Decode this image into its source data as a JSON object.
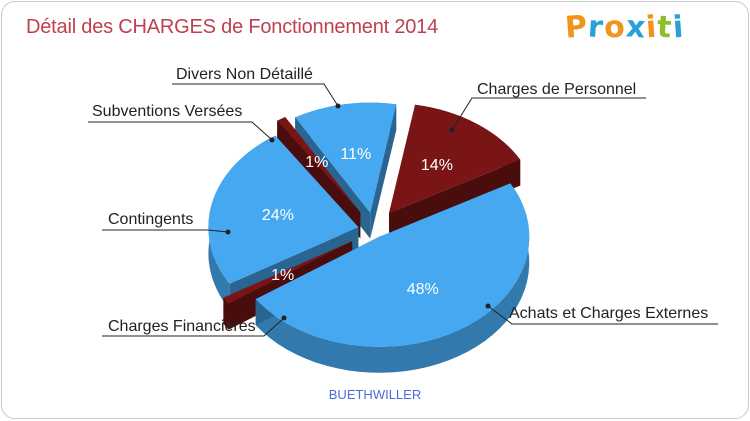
{
  "title": "Détail des CHARGES de Fonctionnement 2014",
  "logo": {
    "text": "Proxiti",
    "letters": [
      "P",
      "r",
      "o",
      "x",
      "i",
      "t",
      "i"
    ],
    "colors": [
      "#f0941c",
      "#2aa0d8",
      "#f0941c",
      "#2aa0d8",
      "#f0941c",
      "#8cbf2a",
      "#2aa0d8"
    ]
  },
  "subtitle": "BUETHWILLER",
  "colors": {
    "blue": "#45a8f0",
    "blue_dark": "#2b86cf",
    "red": "#7a1515",
    "red_dark": "#5a0e0e"
  },
  "chart_data": {
    "type": "pie",
    "title": "Détail des CHARGES de Fonctionnement 2014",
    "series": [
      {
        "name": "Charges de Personnel",
        "value": 14,
        "label": "14%",
        "color": "#7a1515"
      },
      {
        "name": "Achats et Charges Externes",
        "value": 48,
        "label": "48%",
        "color": "#45a8f0"
      },
      {
        "name": "Charges Financières",
        "value": 1,
        "label": "1%",
        "color": "#7a1515"
      },
      {
        "name": "Contingents",
        "value": 24,
        "label": "24%",
        "color": "#45a8f0"
      },
      {
        "name": "Subventions Versées",
        "value": 1,
        "label": "1%",
        "color": "#7a1515"
      },
      {
        "name": "Divers Non Détaillé",
        "value": 11,
        "label": "11%",
        "color": "#45a8f0"
      }
    ]
  }
}
